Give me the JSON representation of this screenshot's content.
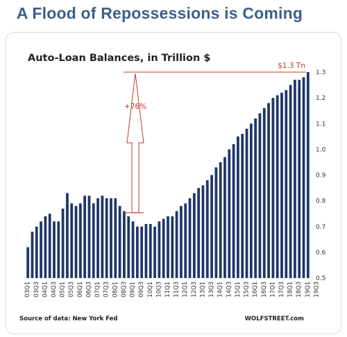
{
  "headline": "A Flood of Repossessions is Coming",
  "chart_data": {
    "type": "bar",
    "title": "Auto-Loan Balances, in Trillion $",
    "source": "Source of data: New York Fed",
    "brand": "WOLFSTREET.com",
    "ylim": [
      0.5,
      1.3
    ],
    "yticks": [
      0.5,
      0.6,
      0.7,
      0.8,
      0.9,
      1.0,
      1.1,
      1.2,
      1.3
    ],
    "ytick_labels": [
      "0.5",
      "0.6",
      "0.7",
      "0.8",
      "0.9",
      "1.0",
      "1.1",
      "1.2",
      "1.3"
    ],
    "tick_labels": [
      "03Q1",
      "03Q3",
      "04Q1",
      "04Q3",
      "05Q1",
      "05Q3",
      "06Q1",
      "06Q3",
      "07Q1",
      "07Q3",
      "08Q1",
      "08Q3",
      "09Q1",
      "09Q3",
      "10Q1",
      "10Q3",
      "11Q1",
      "11Q3",
      "12Q1",
      "12Q3",
      "13Q1",
      "13Q3",
      "14Q1",
      "14Q3",
      "15Q1",
      "15Q3",
      "16Q1",
      "16Q3",
      "17Q1",
      "17Q3",
      "18Q1",
      "18Q3",
      "19Q1",
      "19Q3"
    ],
    "values": [
      0.62,
      0.68,
      0.7,
      0.72,
      0.74,
      0.75,
      0.72,
      0.72,
      0.77,
      0.83,
      0.79,
      0.78,
      0.79,
      0.82,
      0.82,
      0.79,
      0.81,
      0.82,
      0.81,
      0.81,
      0.81,
      0.78,
      0.76,
      0.74,
      0.72,
      0.7,
      0.7,
      0.71,
      0.71,
      0.7,
      0.72,
      0.73,
      0.74,
      0.74,
      0.76,
      0.78,
      0.79,
      0.81,
      0.83,
      0.85,
      0.86,
      0.88,
      0.9,
      0.93,
      0.95,
      0.97,
      1.0,
      1.02,
      1.05,
      1.06,
      1.08,
      1.1,
      1.12,
      1.14,
      1.16,
      1.18,
      1.2,
      1.21,
      1.22,
      1.23,
      1.25,
      1.27,
      1.27,
      1.28,
      1.3
    ],
    "bar_color": "#1f3769",
    "annotation_color": "#c0392b",
    "annotations": {
      "peak_label": "$1.3 Tn",
      "pct_label": "+76%"
    },
    "grid": false
  }
}
